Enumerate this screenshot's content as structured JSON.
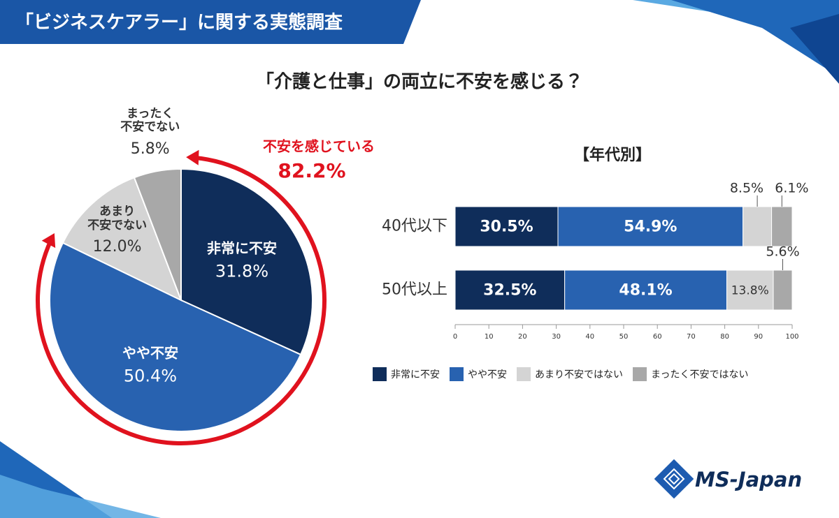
{
  "header": {
    "title": "「ビジネスケアラー」に関する実態調査"
  },
  "heading": "「介護と仕事」の両立に不安を感じる？",
  "brand": "MS-Japan",
  "chart_data": [
    {
      "type": "pie",
      "categories": [
        "非常に不安",
        "やや不安",
        "あまり\n不安でない",
        "まったく\n不安でない"
      ],
      "values": [
        31.8,
        50.4,
        12.0,
        5.8
      ],
      "value_labels": [
        "31.8%",
        "50.4%",
        "12.0%",
        "5.8%"
      ],
      "colors": [
        "#0f2d5a",
        "#2862b0",
        "#d4d4d4",
        "#a8a8a8"
      ],
      "annotation": {
        "text": "不安を感じている",
        "value": 82.2,
        "value_label": "82.2%",
        "color": "#e0121e"
      }
    },
    {
      "type": "stacked-bar-horizontal",
      "title": "【年代別】",
      "categories": [
        "40代以下",
        "50代以上"
      ],
      "series": [
        {
          "name": "非常に不安",
          "color": "#0f2d5a",
          "values": [
            30.5,
            32.5
          ],
          "value_labels": [
            "30.5%",
            "32.5%"
          ]
        },
        {
          "name": "やや不安",
          "color": "#2862b0",
          "values": [
            54.9,
            48.1
          ],
          "value_labels": [
            "54.9%",
            "48.1%"
          ]
        },
        {
          "name": "あまり不安ではない",
          "color": "#d4d4d4",
          "values": [
            8.5,
            13.8
          ],
          "value_labels": [
            "8.5%",
            "13.8%"
          ]
        },
        {
          "name": "まったく不安ではない",
          "color": "#a8a8a8",
          "values": [
            6.1,
            5.6
          ],
          "value_labels": [
            "6.1%",
            "5.6%"
          ]
        }
      ],
      "xlim": [
        0,
        100
      ],
      "xticks": [
        0,
        10,
        20,
        30,
        40,
        50,
        60,
        70,
        80,
        90,
        100
      ]
    }
  ]
}
